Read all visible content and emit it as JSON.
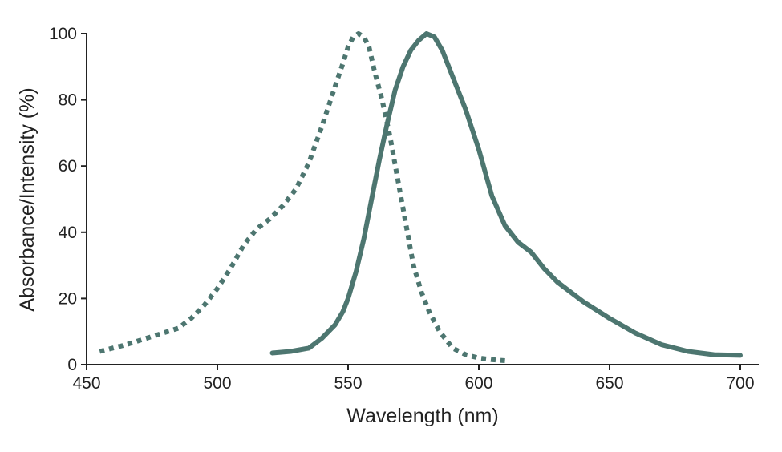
{
  "chart_data": {
    "type": "line",
    "xlabel": "Wavelength (nm)",
    "ylabel": "Absorbance/Intensity (%)",
    "xlim": [
      450,
      700
    ],
    "ylim": [
      0,
      100
    ],
    "x_ticks": [
      450,
      500,
      550,
      600,
      650,
      700
    ],
    "y_ticks": [
      0,
      20,
      40,
      60,
      80,
      100
    ],
    "grid": false,
    "series": [
      {
        "style": "dotted",
        "color": "#4d7670",
        "points": [
          [
            455,
            4
          ],
          [
            465,
            6
          ],
          [
            475,
            8.5
          ],
          [
            485,
            11
          ],
          [
            490,
            14
          ],
          [
            495,
            18
          ],
          [
            500,
            23
          ],
          [
            505,
            29
          ],
          [
            510,
            36
          ],
          [
            515,
            41
          ],
          [
            520,
            44
          ],
          [
            525,
            48
          ],
          [
            530,
            53
          ],
          [
            535,
            61
          ],
          [
            540,
            72
          ],
          [
            545,
            84
          ],
          [
            548,
            91
          ],
          [
            550,
            96
          ],
          [
            552,
            99
          ],
          [
            554,
            100
          ],
          [
            556,
            99
          ],
          [
            558,
            96
          ],
          [
            560,
            89
          ],
          [
            563,
            80
          ],
          [
            566,
            69
          ],
          [
            569,
            56
          ],
          [
            572,
            43
          ],
          [
            575,
            30
          ],
          [
            578,
            22
          ],
          [
            581,
            16
          ],
          [
            585,
            10
          ],
          [
            590,
            5
          ],
          [
            595,
            3
          ],
          [
            600,
            2
          ],
          [
            605,
            1.5
          ],
          [
            610,
            1.2
          ]
        ]
      },
      {
        "style": "solid",
        "color": "#4d7670",
        "points": [
          [
            521,
            3.5
          ],
          [
            528,
            4
          ],
          [
            535,
            5
          ],
          [
            540,
            8
          ],
          [
            545,
            12
          ],
          [
            548,
            16
          ],
          [
            550,
            20
          ],
          [
            553,
            28
          ],
          [
            556,
            38
          ],
          [
            559,
            50
          ],
          [
            562,
            62
          ],
          [
            565,
            73
          ],
          [
            568,
            83
          ],
          [
            571,
            90
          ],
          [
            574,
            95
          ],
          [
            577,
            98
          ],
          [
            580,
            100
          ],
          [
            583,
            99
          ],
          [
            586,
            95
          ],
          [
            590,
            87
          ],
          [
            595,
            77
          ],
          [
            600,
            65
          ],
          [
            605,
            51
          ],
          [
            610,
            42
          ],
          [
            615,
            37
          ],
          [
            620,
            34
          ],
          [
            625,
            29
          ],
          [
            630,
            25
          ],
          [
            640,
            19
          ],
          [
            650,
            14
          ],
          [
            660,
            9.5
          ],
          [
            670,
            6
          ],
          [
            680,
            4
          ],
          [
            690,
            3
          ],
          [
            700,
            2.8
          ]
        ]
      }
    ]
  }
}
